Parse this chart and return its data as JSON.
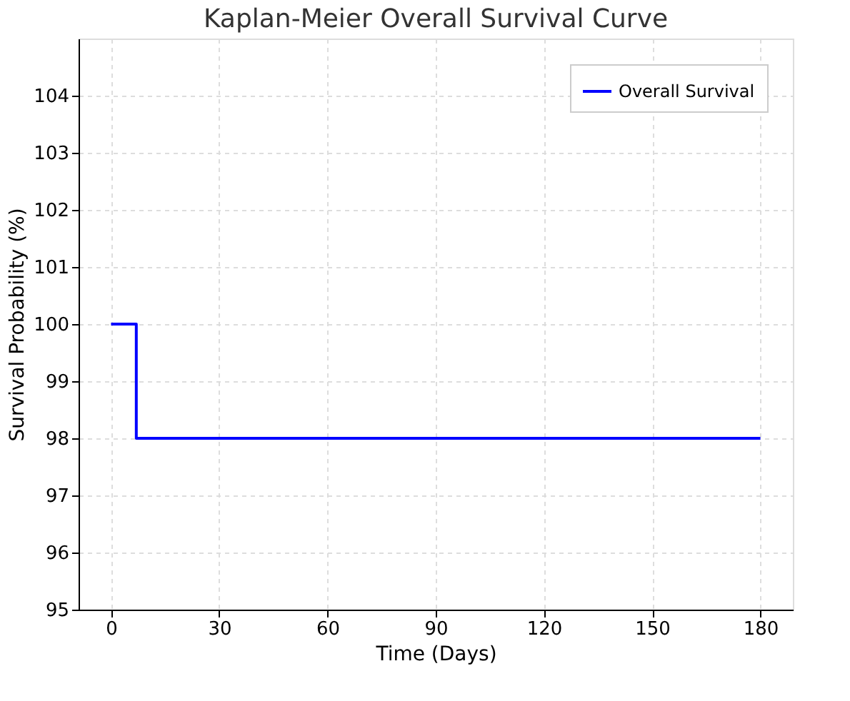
{
  "chart_data": {
    "type": "step",
    "title": "Kaplan-Meier Overall Survival Curve",
    "xlabel": "Time (Days)",
    "ylabel": "Survival Probability (%)",
    "x": [
      0,
      7,
      180
    ],
    "series": [
      {
        "name": "Overall Survival",
        "color": "#0000ff",
        "values": [
          100,
          98,
          98
        ]
      }
    ],
    "xlim": [
      -9,
      189
    ],
    "xticks": [
      0,
      30,
      60,
      90,
      120,
      150,
      180
    ],
    "ylim": [
      95,
      105
    ],
    "yticks": [
      95,
      96,
      97,
      98,
      99,
      100,
      101,
      102,
      103,
      104
    ],
    "grid": true,
    "legend": "top right",
    "line_style": "solid",
    "marker": "none"
  }
}
